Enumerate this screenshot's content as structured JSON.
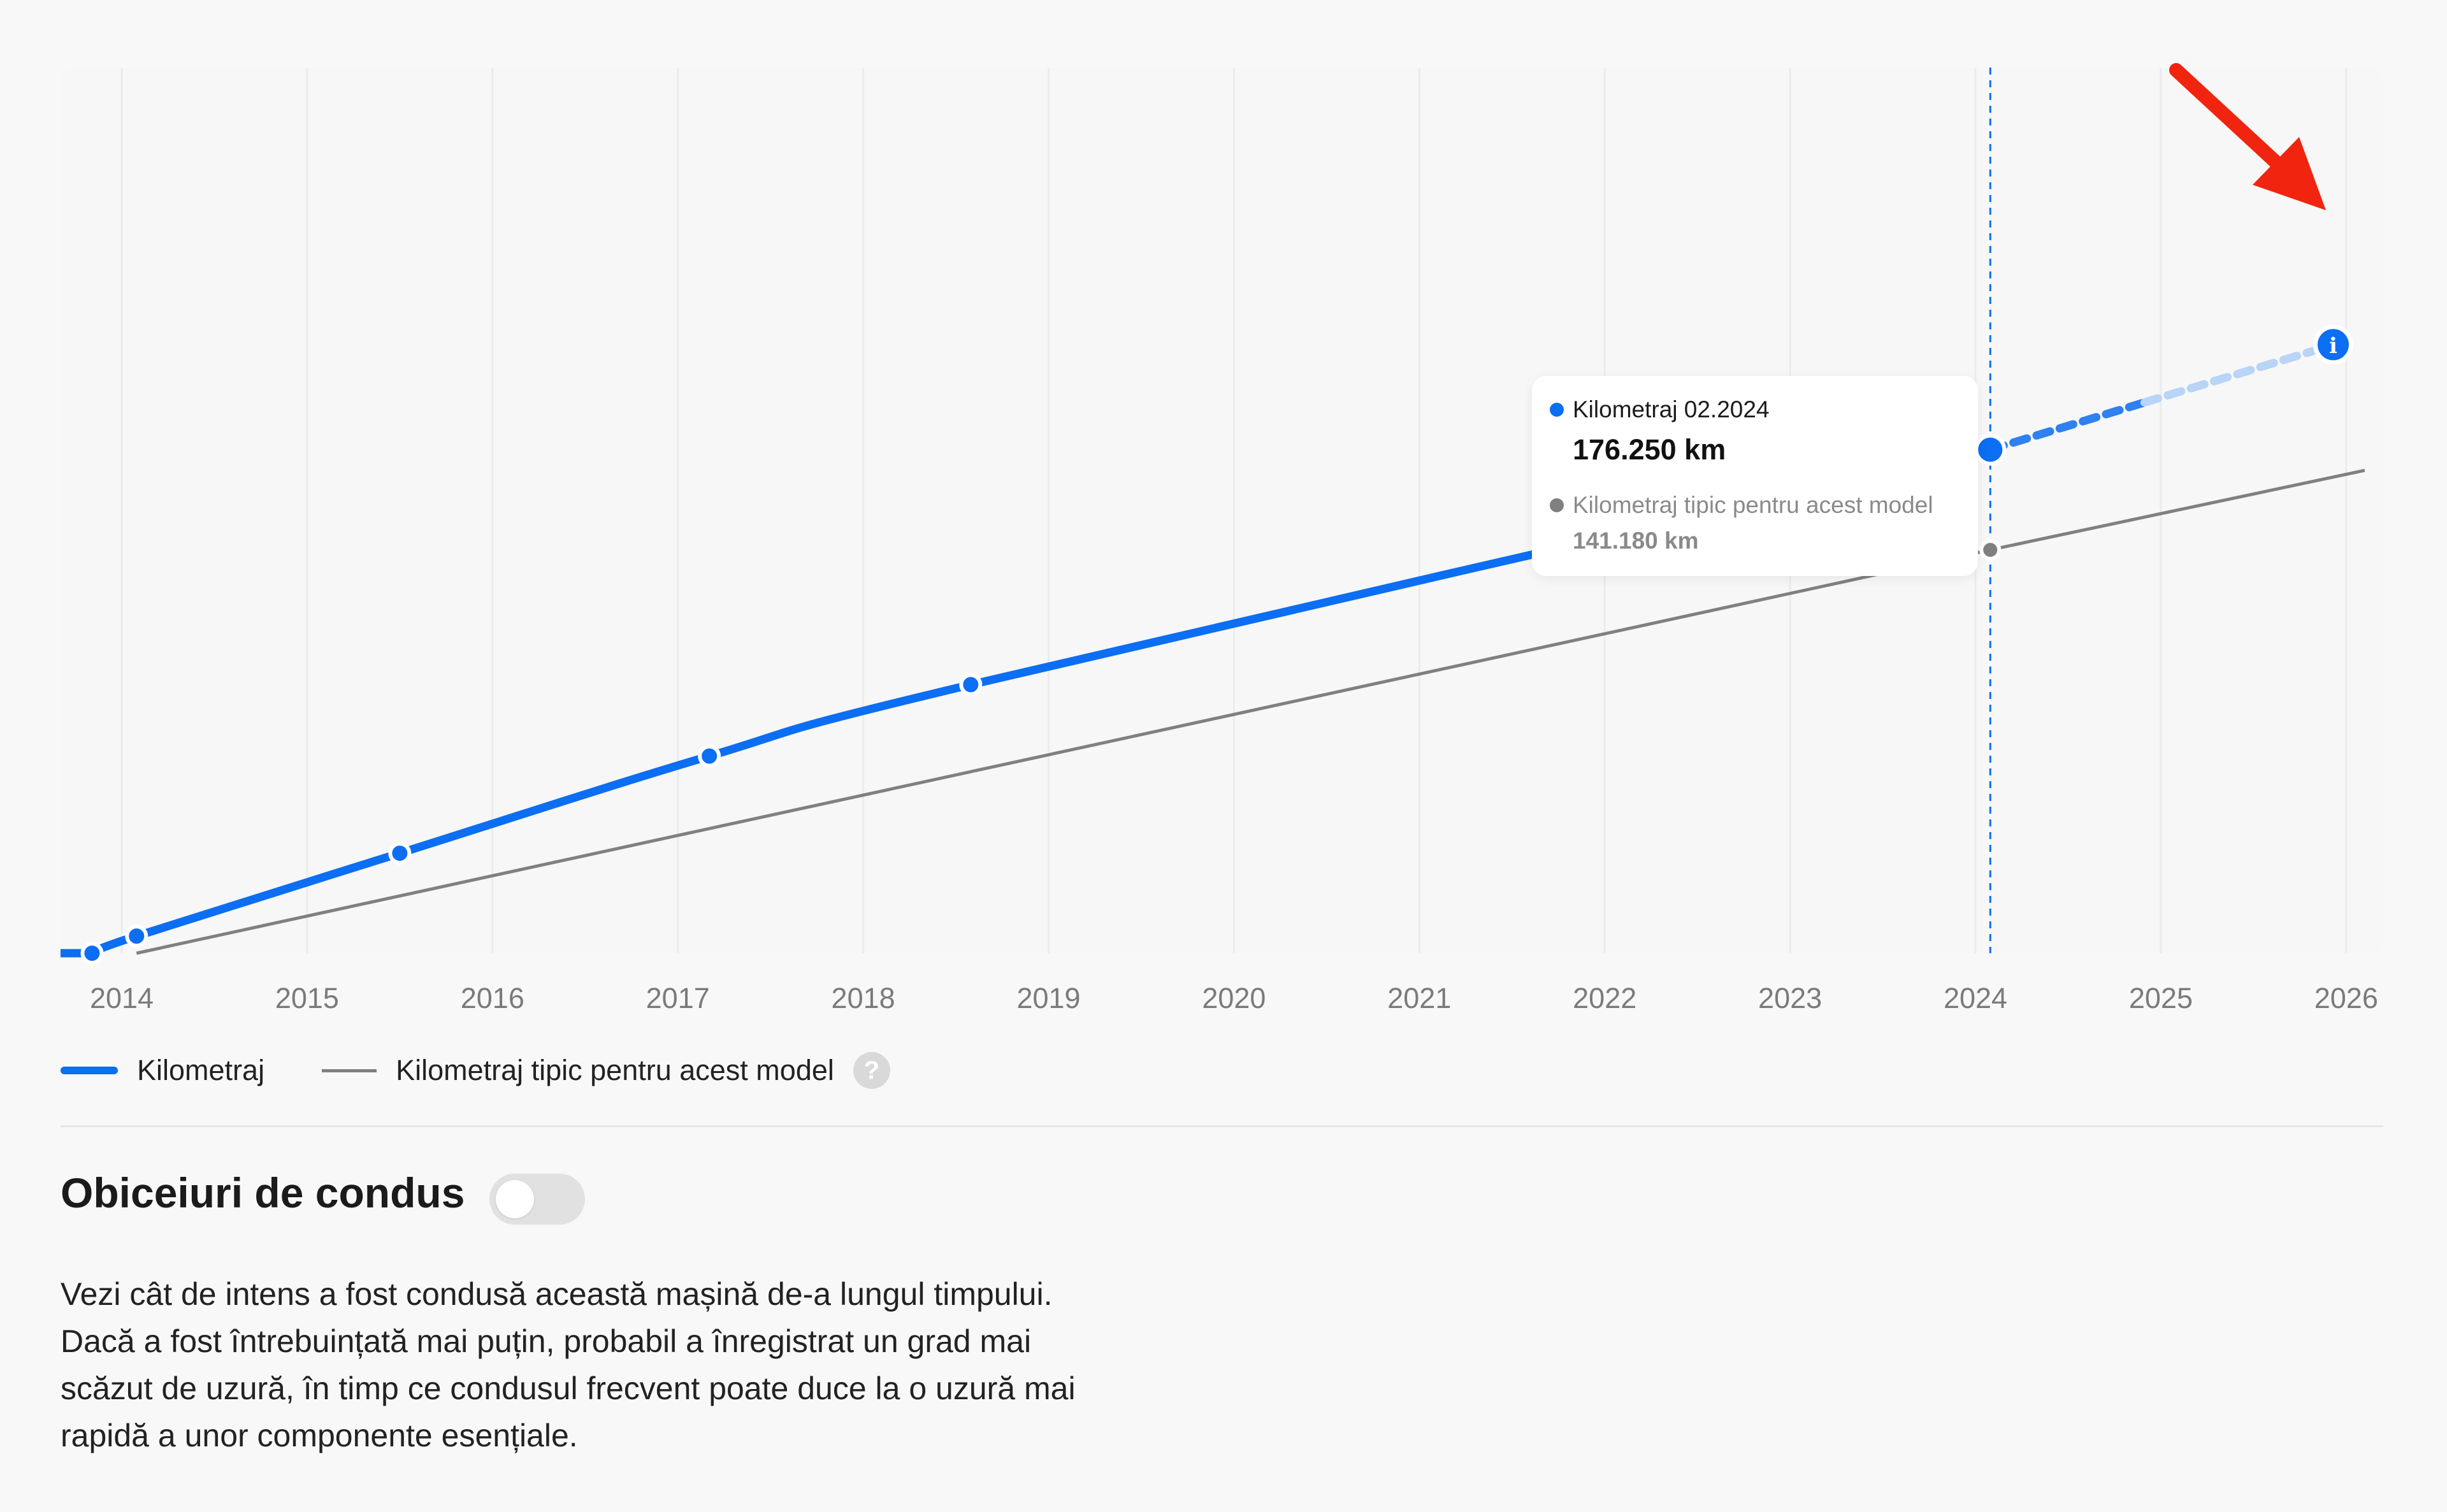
{
  "chart_data": {
    "type": "line",
    "x_ticks": [
      "2014",
      "2015",
      "2016",
      "2017",
      "2018",
      "2019",
      "2020",
      "2021",
      "2022",
      "2023",
      "2024",
      "2025",
      "2026"
    ],
    "xlim": [
      2013.67,
      2026.2
    ],
    "ylim": [
      0,
      310000
    ],
    "series": [
      {
        "name": "Kilometraj",
        "color": "#0b6ef3",
        "points": [
          [
            2013.84,
            0
          ],
          [
            2014.08,
            6000
          ],
          [
            2015.5,
            35000
          ],
          [
            2017.17,
            69000
          ],
          [
            2018.58,
            94000
          ],
          [
            2024.08,
            176250
          ]
        ],
        "projection": [
          [
            2024.08,
            176250
          ],
          [
            2025.93,
            213000
          ]
        ]
      },
      {
        "name": "Kilometraj tipic pentru acest model",
        "color": "#808080",
        "points": [
          [
            2014.08,
            0
          ],
          [
            2024.08,
            141180
          ],
          [
            2026.1,
            169000
          ]
        ]
      }
    ],
    "highlight_x": 2024.08,
    "tooltip": {
      "label1": "Kilometraj 02.2024",
      "value1": "176.250 km",
      "label2": "Kilometraj tipic pentru acest model",
      "value2": "141.180 km"
    },
    "info_icon": "info-icon",
    "annotation": "red-arrow-icon"
  },
  "legend": {
    "item1": "Kilometraj",
    "item2": "Kilometraj tipic pentru acest model",
    "help": "?"
  },
  "section": {
    "title": "Obiceiuri de condus",
    "toggle_on": false,
    "description_lines": [
      "Vezi cât de intens a fost condusă această mașină de-a lungul timpului.",
      "Dacă a fost întrebuințată mai puțin, probabil a înregistrat un grad mai",
      "scăzut de uzură, în timp ce condusul frecvent poate duce la o uzură mai",
      "rapidă a unor componente esențiale."
    ]
  },
  "colors": {
    "accent": "#0b6ef3",
    "typical": "#808080",
    "arrow": "#f0240f"
  }
}
